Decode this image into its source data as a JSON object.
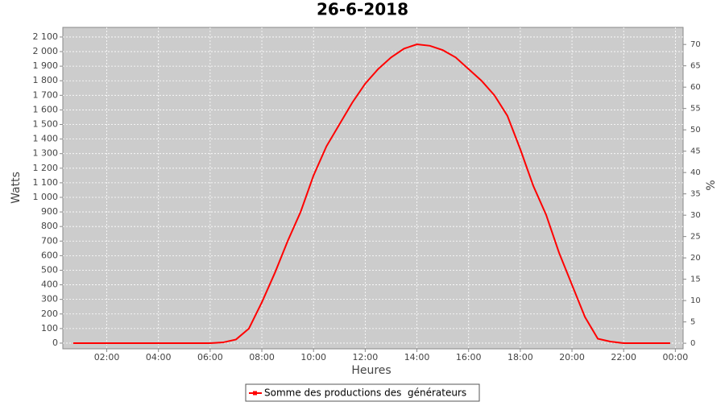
{
  "chart_data": {
    "type": "line",
    "title": "26-6-2018",
    "x_label": "Heures",
    "y_label": "Watts",
    "y2_label": "%",
    "x": [
      0.7,
      1,
      1.5,
      2,
      2.5,
      3,
      3.5,
      4,
      4.5,
      5,
      5.5,
      6,
      6.5,
      7,
      7.5,
      8,
      8.5,
      9,
      9.5,
      10,
      10.5,
      11,
      11.5,
      12,
      12.5,
      13,
      13.5,
      14,
      14.5,
      15,
      15.5,
      16,
      16.5,
      17,
      17.5,
      18,
      18.5,
      19,
      19.5,
      20,
      20.5,
      21,
      21.5,
      22,
      22.5,
      23,
      23.5,
      23.8
    ],
    "series": [
      {
        "name": "Somme des productions des  générateurs",
        "color": "#ff0000",
        "values": [
          0,
          0,
          0,
          0,
          0,
          0,
          0,
          0,
          0,
          0,
          0,
          0,
          5,
          25,
          100,
          280,
          480,
          700,
          900,
          1150,
          1350,
          1500,
          1650,
          1780,
          1880,
          1960,
          2020,
          2050,
          2040,
          2010,
          1960,
          1880,
          1800,
          1700,
          1560,
          1330,
          1080,
          880,
          620,
          400,
          180,
          30,
          10,
          0,
          0,
          0,
          0,
          0
        ]
      }
    ],
    "xlim": [
      0.3,
      24.3
    ],
    "xticks": [
      {
        "value": 2,
        "label": "02:00"
      },
      {
        "value": 4,
        "label": "04:00"
      },
      {
        "value": 6,
        "label": "06:00"
      },
      {
        "value": 8,
        "label": "08:00"
      },
      {
        "value": 10,
        "label": "10:00"
      },
      {
        "value": 12,
        "label": "12:00"
      },
      {
        "value": 14,
        "label": "14:00"
      },
      {
        "value": 16,
        "label": "16:00"
      },
      {
        "value": 18,
        "label": "18:00"
      },
      {
        "value": 20,
        "label": "20:00"
      },
      {
        "value": 22,
        "label": "22:00"
      },
      {
        "value": 24,
        "label": "00:00"
      }
    ],
    "ylim": [
      -39,
      2166
    ],
    "yticks": [
      0,
      100,
      200,
      300,
      400,
      500,
      600,
      700,
      800,
      900,
      {
        "value": 1000,
        "label": "1 000"
      },
      {
        "value": 1100,
        "label": "1 100"
      },
      {
        "value": 1200,
        "label": "1 200"
      },
      {
        "value": 1300,
        "label": "1 300"
      },
      {
        "value": 1400,
        "label": "1 400"
      },
      {
        "value": 1500,
        "label": "1 500"
      },
      {
        "value": 1600,
        "label": "1 600"
      },
      {
        "value": 1700,
        "label": "1 700"
      },
      {
        "value": 1800,
        "label": "1 800"
      },
      {
        "value": 1900,
        "label": "1 900"
      },
      {
        "value": 2000,
        "label": "2 000"
      },
      {
        "value": 2100,
        "label": "2 100"
      }
    ],
    "y2lim": [
      -1.3,
      74
    ],
    "y2ticks": [
      0,
      5,
      10,
      15,
      20,
      25,
      30,
      35,
      40,
      45,
      50,
      55,
      60,
      65,
      70
    ],
    "grid": true,
    "legend": "bottom"
  }
}
